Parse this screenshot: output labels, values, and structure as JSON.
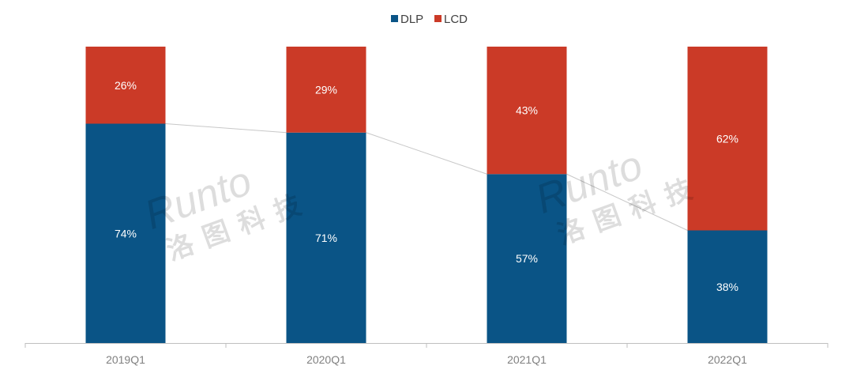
{
  "chart_data": {
    "type": "bar",
    "stacked": true,
    "title": "",
    "xlabel": "",
    "ylabel": "",
    "ylim": [
      0,
      100
    ],
    "categories": [
      "2019Q1",
      "2020Q1",
      "2021Q1",
      "2022Q1"
    ],
    "series": [
      {
        "name": "DLP",
        "color": "#0a5486",
        "values": [
          74,
          71,
          57,
          38
        ],
        "labels": [
          "74%",
          "71%",
          "57%",
          "38%"
        ]
      },
      {
        "name": "LCD",
        "color": "#cb3a27",
        "values": [
          26,
          29,
          43,
          62
        ],
        "labels": [
          "26%",
          "29%",
          "43%",
          "62%"
        ]
      }
    ],
    "series_lines": true,
    "legend": "top-center",
    "grid": false
  },
  "watermark": {
    "text": "Runto",
    "subtext": "洛图科技"
  }
}
